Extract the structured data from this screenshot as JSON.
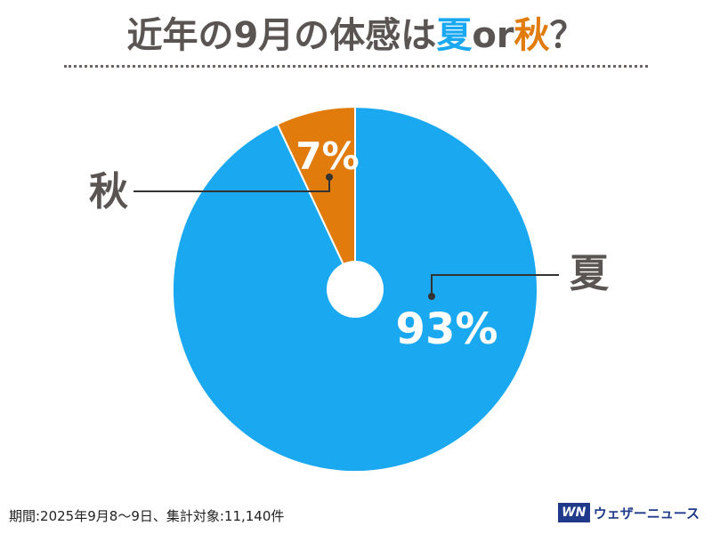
{
  "header": {
    "title_prefix": "近年の9月の体感は",
    "title_summer": "夏",
    "title_or": " or ",
    "title_autumn": "秋",
    "title_suffix": "？"
  },
  "chart_data": {
    "type": "pie",
    "series": [
      {
        "name": "夏",
        "label": "93%",
        "value": 93,
        "color": "#1aa8f0"
      },
      {
        "name": "秋",
        "label": "7%",
        "value": 7,
        "color": "#e07b0c"
      }
    ],
    "center_hole": true
  },
  "footer": {
    "note": "期間:2025年9月8〜9日、集計対象:11,140件",
    "brand_logo": "WN",
    "brand_name": "ウェザーニュース"
  }
}
